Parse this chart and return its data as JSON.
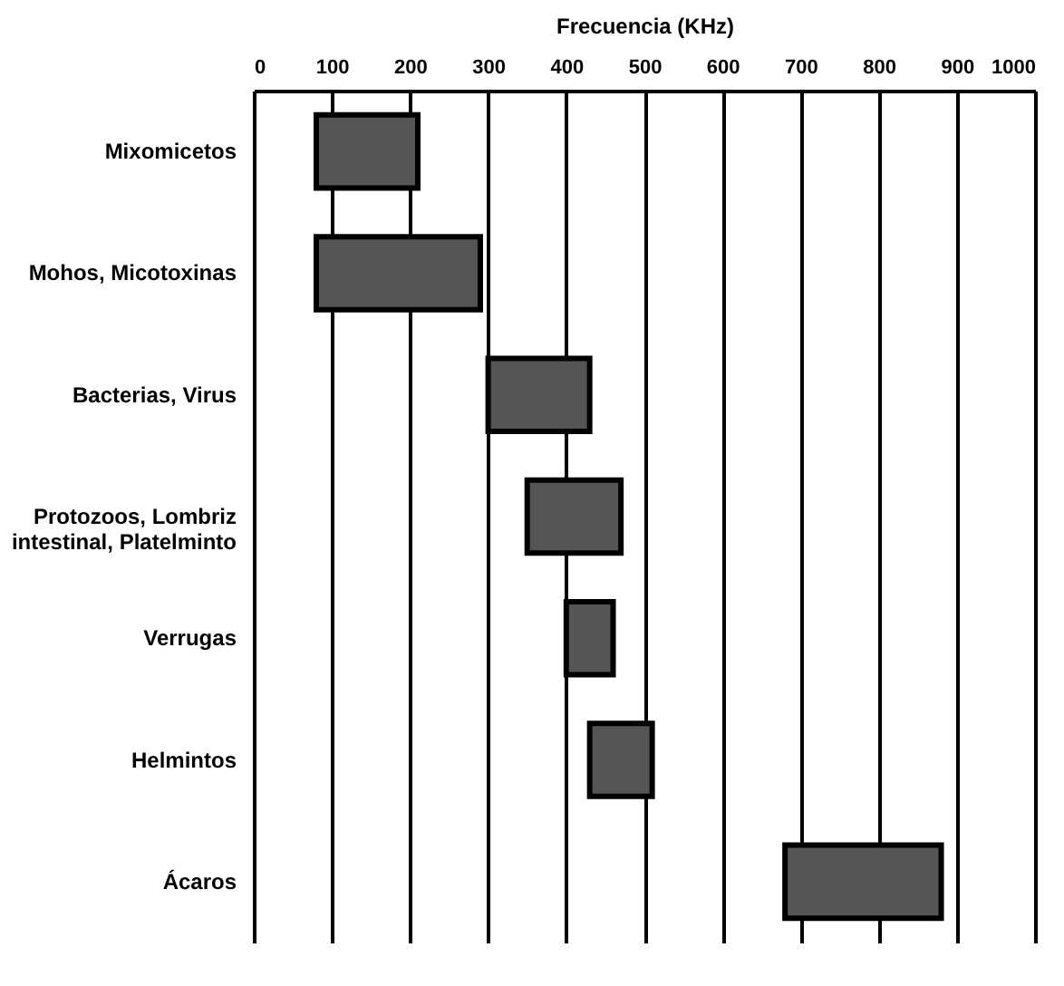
{
  "chart_data": {
    "type": "bar",
    "orientation": "horizontal",
    "xlabel": "Frecuencia (KHz)",
    "categories": [
      "Mixomicetos",
      "Mohos, Micotoxinas",
      "Bacterias, Virus",
      "Protozoos, Lombriz intestinal, Platelminto",
      "Verrugas",
      "Helmintos",
      "Ácaros"
    ],
    "base": [
      80,
      80,
      300,
      350,
      400,
      430,
      680
    ],
    "values": [
      130,
      210,
      130,
      120,
      60,
      80,
      200
    ],
    "color": "#555555",
    "xlim": [
      0,
      1000
    ],
    "xticks": [
      0,
      100,
      200,
      300,
      400,
      500,
      600,
      700,
      800,
      900,
      1000
    ],
    "grid": "x"
  }
}
